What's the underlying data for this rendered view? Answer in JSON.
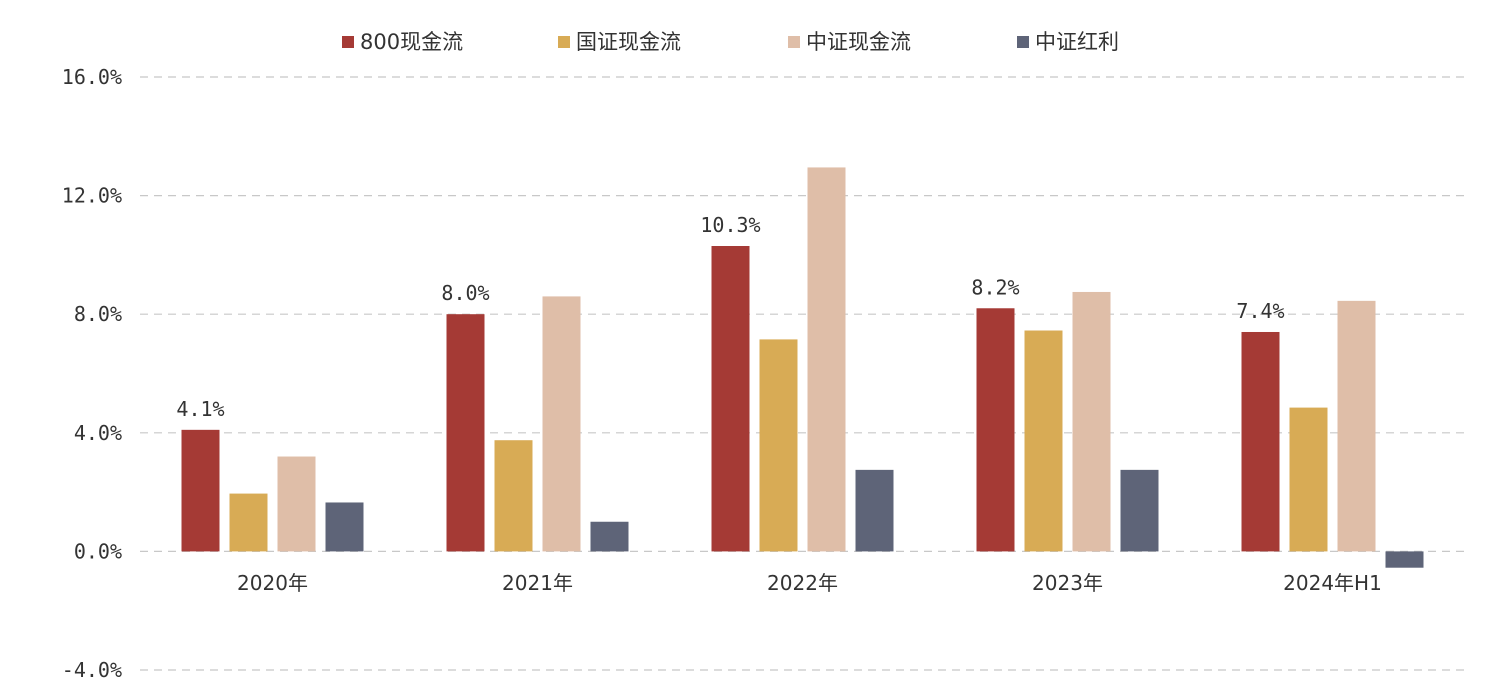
{
  "chart_data": {
    "type": "bar",
    "categories": [
      "2020年",
      "2021年",
      "2022年",
      "2023年",
      "2024年H1"
    ],
    "series": [
      {
        "name": "800现金流",
        "color": "#a53a35",
        "values": [
          4.1,
          8.0,
          10.3,
          8.2,
          7.4
        ]
      },
      {
        "name": "国证现金流",
        "color": "#d8ab55",
        "values": [
          1.95,
          3.75,
          7.15,
          7.45,
          4.85
        ]
      },
      {
        "name": "中证现金流",
        "color": "#dfbea8",
        "values": [
          3.2,
          8.6,
          12.95,
          8.75,
          8.45
        ]
      },
      {
        "name": "中证红利",
        "color": "#5e6478",
        "values": [
          1.65,
          1.0,
          2.75,
          2.75,
          -0.55
        ]
      }
    ],
    "data_labels": {
      "series": "800现金流",
      "texts": [
        "4.1%",
        "8.0%",
        "10.3%",
        "8.2%",
        "7.4%"
      ]
    },
    "yticks": [
      {
        "value": 16,
        "label": "16.0%"
      },
      {
        "value": 12,
        "label": "12.0%"
      },
      {
        "value": 8,
        "label": "8.0%"
      },
      {
        "value": 4,
        "label": "4.0%"
      },
      {
        "value": 0,
        "label": "0.0%"
      },
      {
        "value": -4,
        "label": "-4.0%"
      }
    ],
    "ylim": [
      -4,
      16
    ],
    "grid": true,
    "legend_position": "top"
  }
}
